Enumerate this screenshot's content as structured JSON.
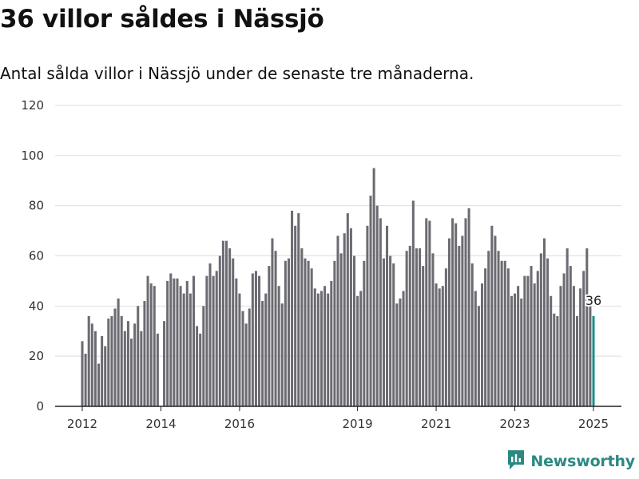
{
  "title": "36 villor såldes i Nässjö",
  "subtitle": "Antal sålda villor i Nässjö under de senaste tre månaderna.",
  "brand": {
    "name": "Newsworthy",
    "color": "#2a8a82",
    "icon": "newsworthy-logo-icon"
  },
  "colors": {
    "bar": "#6b6b72",
    "highlight": "#1a9088",
    "grid": "#dddddd",
    "axis": "#222222"
  },
  "chart_data": {
    "type": "bar",
    "title": "",
    "xlabel": "",
    "ylabel": "",
    "ylim": [
      0,
      120
    ],
    "yticks": [
      0,
      20,
      40,
      60,
      80,
      100,
      120
    ],
    "grid": true,
    "x_ticks": [
      {
        "label": "2012",
        "index": 0
      },
      {
        "label": "2014",
        "index": 24
      },
      {
        "label": "2016",
        "index": 48
      },
      {
        "label": "2019",
        "index": 84
      },
      {
        "label": "2021",
        "index": 108
      },
      {
        "label": "2023",
        "index": 132
      },
      {
        "label": "2025",
        "index": 156
      }
    ],
    "x": [
      "2012-01",
      "2012-02",
      "2012-03",
      "2012-04",
      "2012-05",
      "2012-06",
      "2012-07",
      "2012-08",
      "2012-09",
      "2012-10",
      "2012-11",
      "2012-12",
      "2013-01",
      "2013-02",
      "2013-03",
      "2013-04",
      "2013-05",
      "2013-06",
      "2013-07",
      "2013-08",
      "2013-09",
      "2013-10",
      "2013-11",
      "2013-12",
      "2014-01",
      "2014-02",
      "2014-03",
      "2014-04",
      "2014-05",
      "2014-06",
      "2014-07",
      "2014-08",
      "2014-09",
      "2014-10",
      "2014-11",
      "2014-12",
      "2015-01",
      "2015-02",
      "2015-03",
      "2015-04",
      "2015-05",
      "2015-06",
      "2015-07",
      "2015-08",
      "2015-09",
      "2015-10",
      "2015-11",
      "2015-12",
      "2016-01",
      "2016-02",
      "2016-03",
      "2016-04",
      "2016-05",
      "2016-06",
      "2016-07",
      "2016-08",
      "2016-09",
      "2016-10",
      "2016-11",
      "2016-12",
      "2017-01",
      "2017-02",
      "2017-03",
      "2017-04",
      "2017-05",
      "2017-06",
      "2017-07",
      "2017-08",
      "2017-09",
      "2017-10",
      "2017-11",
      "2017-12",
      "2018-01",
      "2018-02",
      "2018-03",
      "2018-04",
      "2018-05",
      "2018-06",
      "2018-07",
      "2018-08",
      "2018-09",
      "2018-10",
      "2018-11",
      "2018-12",
      "2019-01",
      "2019-02",
      "2019-03",
      "2019-04",
      "2019-05",
      "2019-06",
      "2019-07",
      "2019-08",
      "2019-09",
      "2019-10",
      "2019-11",
      "2019-12",
      "2020-01",
      "2020-02",
      "2020-03",
      "2020-04",
      "2020-05",
      "2020-06",
      "2020-07",
      "2020-08",
      "2020-09",
      "2020-10",
      "2020-11",
      "2020-12",
      "2021-01",
      "2021-02",
      "2021-03",
      "2021-04",
      "2021-05",
      "2021-06",
      "2021-07",
      "2021-08",
      "2021-09",
      "2021-10",
      "2021-11",
      "2021-12",
      "2022-01",
      "2022-02",
      "2022-03",
      "2022-04",
      "2022-05",
      "2022-06",
      "2022-07",
      "2022-08",
      "2022-09",
      "2022-10",
      "2022-11",
      "2022-12",
      "2023-01",
      "2023-02",
      "2023-03",
      "2023-04",
      "2023-05",
      "2023-06",
      "2023-07",
      "2023-08",
      "2023-09",
      "2023-10",
      "2023-11",
      "2023-12",
      "2024-01",
      "2024-02",
      "2024-03",
      "2024-04",
      "2024-05",
      "2024-06",
      "2024-07",
      "2024-08",
      "2024-09",
      "2024-10",
      "2024-11",
      "2024-12",
      "2025-01"
    ],
    "values": [
      26,
      21,
      36,
      33,
      30,
      17,
      28,
      24,
      35,
      36,
      39,
      43,
      36,
      30,
      34,
      27,
      33,
      40,
      30,
      42,
      52,
      49,
      48,
      29,
      0,
      34,
      50,
      53,
      51,
      51,
      48,
      45,
      50,
      45,
      52,
      32,
      29,
      40,
      52,
      57,
      52,
      54,
      60,
      66,
      66,
      63,
      59,
      51,
      45,
      38,
      33,
      39,
      53,
      54,
      52,
      42,
      45,
      56,
      67,
      62,
      48,
      41,
      58,
      59,
      78,
      72,
      77,
      63,
      59,
      58,
      55,
      47,
      45,
      46,
      48,
      45,
      50,
      58,
      68,
      61,
      69,
      77,
      71,
      60,
      44,
      46,
      58,
      72,
      84,
      95,
      80,
      75,
      59,
      72,
      60,
      57,
      41,
      43,
      46,
      62,
      64,
      82,
      63,
      63,
      56,
      75,
      74,
      61,
      49,
      47,
      48,
      55,
      67,
      75,
      73,
      64,
      68,
      75,
      79,
      57,
      46,
      40,
      49,
      55,
      62,
      72,
      68,
      62,
      58,
      58,
      55,
      44,
      45,
      48,
      43,
      52,
      52,
      56,
      49,
      54,
      61,
      67,
      59,
      44,
      37,
      36,
      48,
      53,
      63,
      56,
      48,
      36,
      47,
      54,
      63,
      40,
      36
    ],
    "highlight_index": 156,
    "annotation": {
      "index": 156,
      "text": "36"
    }
  }
}
